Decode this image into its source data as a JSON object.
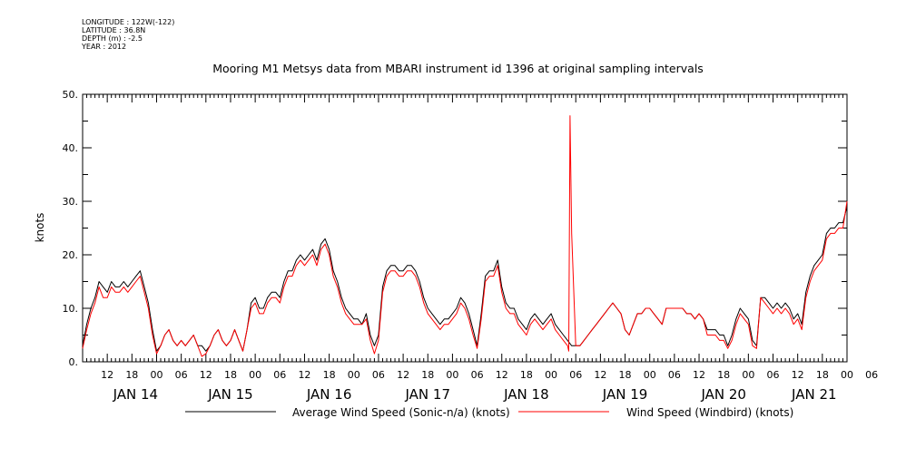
{
  "header": {
    "longitude": "LONGITUDE : 122W(-122)",
    "latitude": "LATITUDE : 36.8N",
    "depth": "DEPTH (m) : -2.5",
    "year": "YEAR : 2012"
  },
  "chart_data": {
    "type": "line",
    "title": "Mooring M1 Metsys data from MBARI instrument id 1396 at original sampling intervals",
    "ylabel": "knots",
    "ylim": [
      0,
      50
    ],
    "yticks": [
      0,
      10,
      20,
      30,
      40,
      50
    ],
    "ytick_labels": [
      "0.",
      "10.",
      "20.",
      "30.",
      "40.",
      "50."
    ],
    "xlim_hours": [
      0,
      186
    ],
    "hour_tick_labels": [
      "12",
      "18",
      "00",
      "06",
      "12",
      "18",
      "00",
      "06",
      "12",
      "18",
      "00",
      "06",
      "12",
      "18",
      "00",
      "06",
      "12",
      "18",
      "00",
      "06",
      "12",
      "18",
      "00",
      "06",
      "12",
      "18",
      "00",
      "06",
      "12",
      "18",
      "00",
      "06"
    ],
    "day_labels": [
      "JAN 14",
      "JAN 15",
      "JAN 16",
      "JAN 17",
      "JAN 18",
      "JAN 19",
      "JAN 20",
      "JAN 21"
    ],
    "x_unit": "hours since Jan 14 06:00",
    "series": [
      {
        "name": "Average Wind Speed (Sonic-n/a) (knots)",
        "color": "#000000",
        "x": [
          0,
          1,
          2,
          3,
          4,
          5,
          6,
          7,
          8,
          9,
          10,
          11,
          12,
          13,
          14,
          15,
          16,
          17,
          18,
          19,
          20,
          21,
          22,
          23,
          24,
          25,
          26,
          27,
          28,
          29,
          30,
          31,
          32,
          33,
          34,
          35,
          36,
          37,
          38,
          39,
          40,
          41,
          42,
          43,
          44,
          45,
          46,
          47,
          48,
          49,
          50,
          51,
          52,
          53,
          54,
          55,
          56,
          57,
          58,
          59,
          60,
          61,
          62,
          63,
          64,
          65,
          66,
          67,
          68,
          69,
          70,
          71,
          72,
          73,
          74,
          75,
          76,
          77,
          78,
          79,
          80,
          81,
          82,
          83,
          84,
          85,
          86,
          87,
          88,
          89,
          90,
          91,
          92,
          93,
          94,
          95,
          96,
          97,
          98,
          99,
          100,
          101,
          102,
          103,
          104,
          105,
          106,
          107,
          108,
          109,
          110,
          111,
          112,
          113,
          114,
          115,
          116,
          117,
          118,
          119,
          120,
          121,
          122,
          123,
          124,
          125,
          126,
          127,
          128,
          129,
          130,
          131,
          132,
          133,
          134,
          135,
          136,
          137,
          138,
          139,
          140,
          141,
          142,
          143,
          144,
          145,
          146,
          147,
          148,
          149,
          150,
          151,
          152,
          153,
          154,
          155,
          156,
          157,
          158,
          159,
          160,
          161,
          162,
          163,
          164,
          165,
          166,
          167,
          168,
          169,
          170,
          171,
          172,
          173,
          174,
          175,
          176,
          177,
          178,
          179,
          180,
          181,
          182,
          183,
          184,
          185,
          186
        ],
        "y": [
          3,
          7,
          10,
          12,
          15,
          14,
          13,
          15,
          14,
          14,
          15,
          14,
          15,
          16,
          17,
          14,
          11,
          6,
          2,
          3,
          5,
          6,
          4,
          3,
          4,
          3,
          4,
          5,
          3,
          3,
          2,
          3,
          5,
          6,
          4,
          3,
          4,
          6,
          4,
          2,
          6,
          11,
          12,
          10,
          10,
          12,
          13,
          13,
          12,
          15,
          17,
          17,
          19,
          20,
          19,
          20,
          21,
          19,
          22,
          23,
          21,
          17,
          15,
          12,
          10,
          9,
          8,
          8,
          7,
          9,
          5,
          3,
          5,
          14,
          17,
          18,
          18,
          17,
          17,
          18,
          18,
          17,
          15,
          12,
          10,
          9,
          8,
          7,
          8,
          8,
          9,
          10,
          12,
          11,
          9,
          6,
          3,
          9,
          16,
          17,
          17,
          19,
          14,
          11,
          10,
          10,
          8,
          7,
          6,
          8,
          9,
          8,
          7,
          8,
          9,
          7,
          6,
          5,
          4,
          3,
          3,
          3,
          4,
          5,
          6,
          7,
          8,
          9,
          10,
          11,
          10,
          9,
          6,
          5,
          7,
          9,
          9,
          10,
          10,
          9,
          8,
          7,
          10,
          10,
          10,
          10,
          10,
          9,
          9,
          8,
          9,
          8,
          6,
          6,
          6,
          5,
          5,
          3,
          5,
          8,
          10,
          9,
          8,
          4,
          3,
          12,
          12,
          11,
          10,
          11,
          10,
          11,
          10,
          8,
          9,
          7,
          13,
          16,
          18,
          19,
          20,
          24,
          25,
          25,
          26,
          26,
          29
        ]
      },
      {
        "name": "Wind Speed (Windbird) (knots)",
        "color": "#ff0000",
        "x": [
          0,
          1,
          2,
          3,
          4,
          5,
          6,
          7,
          8,
          9,
          10,
          11,
          12,
          13,
          14,
          15,
          16,
          17,
          18,
          19,
          20,
          21,
          22,
          23,
          24,
          25,
          26,
          27,
          28,
          29,
          30,
          31,
          32,
          33,
          34,
          35,
          36,
          37,
          38,
          39,
          40,
          41,
          42,
          43,
          44,
          45,
          46,
          47,
          48,
          49,
          50,
          51,
          52,
          53,
          54,
          55,
          56,
          57,
          58,
          59,
          60,
          61,
          62,
          63,
          64,
          65,
          66,
          67,
          68,
          69,
          70,
          71,
          72,
          73,
          74,
          75,
          76,
          77,
          78,
          79,
          80,
          81,
          82,
          83,
          84,
          85,
          86,
          87,
          88,
          89,
          90,
          91,
          92,
          93,
          94,
          95,
          96,
          97,
          98,
          99,
          100,
          101,
          102,
          103,
          104,
          105,
          106,
          107,
          108,
          109,
          110,
          111,
          112,
          113,
          114,
          115,
          116,
          117,
          118,
          118.3,
          118.6,
          119,
          120,
          121,
          122,
          123,
          124,
          125,
          126,
          127,
          128,
          129,
          130,
          131,
          132,
          133,
          134,
          135,
          136,
          137,
          138,
          139,
          140,
          141,
          142,
          143,
          144,
          145,
          146,
          147,
          148,
          149,
          150,
          151,
          152,
          153,
          154,
          155,
          156,
          157,
          158,
          159,
          160,
          161,
          162,
          163,
          164,
          165,
          166,
          167,
          168,
          169,
          170,
          171,
          172,
          173,
          174,
          175,
          176,
          177,
          178,
          179,
          180,
          181,
          182,
          183,
          184,
          185,
          186
        ],
        "y": [
          2.5,
          6,
          9,
          11,
          14,
          12,
          12,
          14,
          13,
          13,
          14,
          13,
          14,
          15,
          16,
          13,
          10,
          5,
          1.5,
          3,
          5,
          6,
          4,
          3,
          4,
          3,
          4,
          5,
          3,
          1,
          1.5,
          3,
          5,
          6,
          4,
          3,
          4,
          6,
          4,
          2,
          6,
          10,
          11,
          9,
          9,
          11,
          12,
          12,
          11,
          14,
          16,
          16,
          18,
          19,
          18,
          19,
          20,
          18,
          21,
          22,
          20,
          16,
          14,
          11,
          9,
          8,
          7,
          7,
          7,
          8,
          4,
          1.5,
          4,
          13,
          16,
          17,
          17,
          16,
          16,
          17,
          17,
          16,
          14,
          11,
          9,
          8,
          7,
          6,
          7,
          7,
          8,
          9,
          11,
          10,
          8,
          5,
          2.5,
          8,
          15,
          16,
          16,
          18,
          13,
          10,
          9,
          9,
          7,
          6,
          5,
          7,
          8,
          7,
          6,
          7,
          8,
          6,
          5,
          4,
          3,
          2,
          46,
          24,
          3,
          3,
          4,
          5,
          6,
          7,
          8,
          9,
          10,
          11,
          10,
          9,
          6,
          5,
          7,
          9,
          9,
          10,
          10,
          9,
          8,
          7,
          10,
          10,
          10,
          10,
          10,
          9,
          9,
          8,
          9,
          8,
          5,
          5,
          5,
          4,
          4,
          2.5,
          4,
          7,
          9,
          8,
          7,
          3,
          2.5,
          12,
          11,
          10,
          9,
          10,
          9,
          10,
          9,
          7,
          8,
          6,
          12,
          15,
          17,
          18,
          19,
          23,
          24,
          24,
          25,
          25,
          30
        ]
      }
    ]
  }
}
